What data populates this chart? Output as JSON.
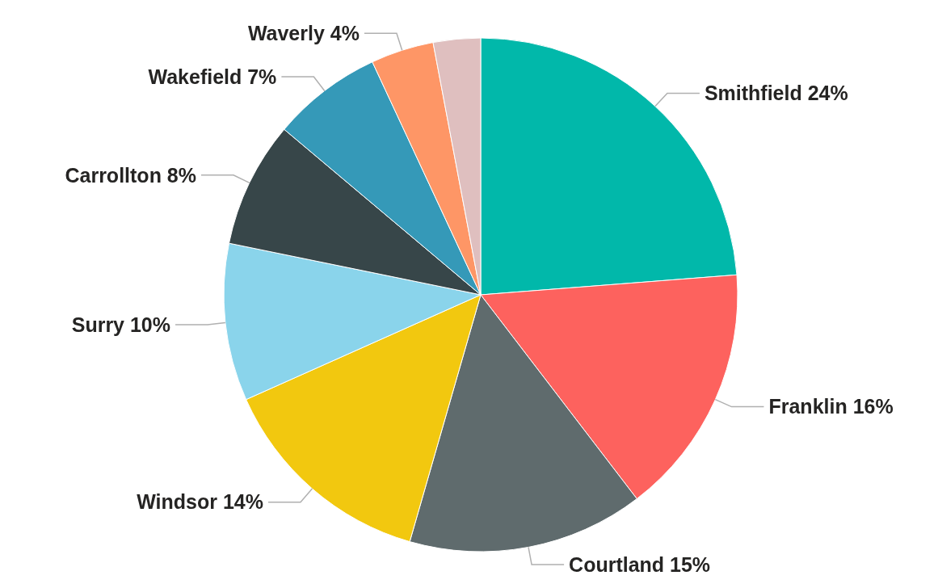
{
  "chart_data": {
    "type": "pie",
    "categories": [
      "Smithfield",
      "Franklin",
      "Courtland",
      "Windsor",
      "Surry",
      "Carrollton",
      "Wakefield",
      "Waverly",
      null
    ],
    "values": [
      24,
      16,
      15,
      14,
      10,
      8,
      7,
      4,
      3
    ],
    "value_labels": [
      "24%",
      "16%",
      "15%",
      "14%",
      "10%",
      "8%",
      "7%",
      "4%",
      null
    ],
    "colors": [
      "#01b8aa",
      "#fd625e",
      "#5f6b6d",
      "#f2c80f",
      "#8ad4eb",
      "#374649",
      "#3599b8",
      "#fe9666",
      "#dfbfbf"
    ]
  }
}
